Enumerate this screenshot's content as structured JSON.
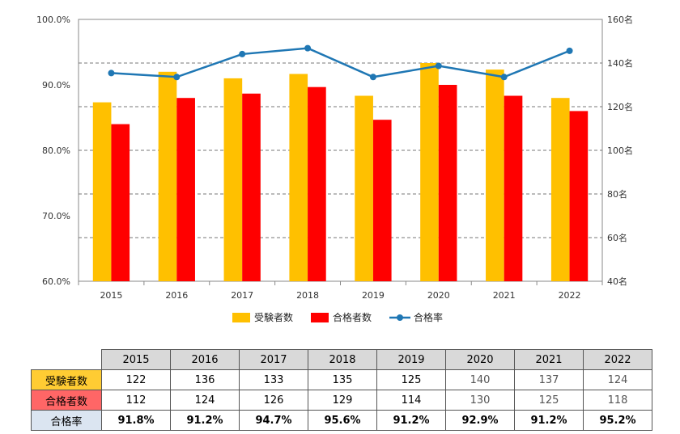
{
  "chart_data": {
    "type": "bar+line",
    "categories": [
      "2015",
      "2016",
      "2017",
      "2018",
      "2019",
      "2020",
      "2021",
      "2022"
    ],
    "series": [
      {
        "name": "受験者数",
        "type": "bar",
        "axis": "right",
        "color": "#ffc000",
        "values": [
          122,
          136,
          133,
          135,
          125,
          140,
          137,
          124
        ]
      },
      {
        "name": "合格者数",
        "type": "bar",
        "axis": "right",
        "color": "#ff0000",
        "values": [
          112,
          124,
          126,
          129,
          114,
          130,
          125,
          118
        ]
      },
      {
        "name": "合格率",
        "type": "line",
        "axis": "left",
        "color": "#1f77b4",
        "values": [
          91.8,
          91.2,
          94.7,
          95.6,
          91.2,
          92.9,
          91.2,
          95.2
        ]
      }
    ],
    "y_left": {
      "min": 60,
      "max": 100,
      "ticks": [
        "60.0%",
        "70.0%",
        "80.0%",
        "90.0%",
        "100.0%"
      ],
      "tick_values": [
        60,
        70,
        80,
        90,
        100
      ]
    },
    "y_right": {
      "min": 40,
      "max": 160,
      "ticks": [
        "40名",
        "60名",
        "80名",
        "100名",
        "120名",
        "140名",
        "160名"
      ],
      "tick_values": [
        40,
        60,
        80,
        100,
        120,
        140,
        160
      ]
    },
    "grid": true,
    "legend": "bottom"
  },
  "table": {
    "years": [
      "2015",
      "2016",
      "2017",
      "2018",
      "2019",
      "2020",
      "2021",
      "2022"
    ],
    "rows": [
      {
        "label": "受験者数",
        "values": [
          "122",
          "136",
          "133",
          "135",
          "125",
          "140",
          "137",
          "124"
        ]
      },
      {
        "label": "合格者数",
        "values": [
          "112",
          "124",
          "126",
          "129",
          "114",
          "130",
          "125",
          "118"
        ]
      },
      {
        "label": "合格率",
        "values": [
          "91.8%",
          "91.2%",
          "94.7%",
          "95.6%",
          "91.2%",
          "92.9%",
          "91.2%",
          "95.2%"
        ]
      }
    ]
  }
}
